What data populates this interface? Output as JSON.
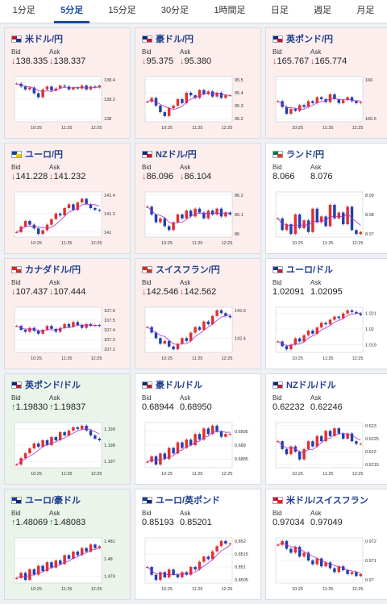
{
  "tabs": [
    {
      "label": "1分足"
    },
    {
      "label": "5分足",
      "active": true
    },
    {
      "label": "15分足"
    },
    {
      "label": "30分足"
    },
    {
      "label": "1時間足"
    },
    {
      "label": "日足"
    },
    {
      "label": "週足"
    },
    {
      "label": "月足"
    }
  ],
  "colors": {
    "down": "#d23c3c",
    "up": "#1f8f2c",
    "bull_candle": "#e03030",
    "bear_candle": "#2040b0",
    "ma": "#b030c8",
    "title": "#1f3d8f"
  },
  "cards": [
    {
      "pair": "米ドル/円",
      "flag": [
        "#c8102e",
        "#0a3c8c"
      ],
      "trend": "down",
      "bid_label": "Bid",
      "ask_label": "Ask",
      "bid": "↓138.335",
      "ask": "↓138.337",
      "chart": {
        "xticks": [
          "10:25",
          "11:25",
          "12:25"
        ],
        "yticks": [
          "138.4",
          "138.2",
          "138"
        ],
        "close": [
          138.36,
          138.33,
          138.3,
          138.32,
          138.26,
          138.22,
          138.3,
          138.33,
          138.29,
          138.31,
          138.34,
          138.33,
          138.3,
          138.32,
          138.31,
          138.34,
          138.3,
          138.33,
          138.32,
          138.34
        ]
      }
    },
    {
      "pair": "豪ドル/円",
      "flag": [
        "#0a2a78",
        "#c8102e"
      ],
      "trend": "down",
      "bid_label": "Bid",
      "ask_label": "Ask",
      "bid": "↓95.375",
      "ask": "↓95.380",
      "chart": {
        "xticks": [
          "10:25",
          "11:25",
          "12:25"
        ],
        "yticks": [
          "95.5",
          "95.4",
          "95.3",
          "95.2"
        ],
        "close": [
          95.33,
          95.36,
          95.3,
          95.25,
          95.22,
          95.28,
          95.3,
          95.35,
          95.32,
          95.4,
          95.38,
          95.36,
          95.42,
          95.39,
          95.41,
          95.37,
          95.4,
          95.36,
          95.38,
          95.38
        ]
      }
    },
    {
      "pair": "英ポンド/円",
      "flag": [
        "#0a2a78",
        "#c8102e"
      ],
      "trend": "down",
      "bid_label": "Bid",
      "ask_label": "Ask",
      "bid": "↓165.767",
      "ask": "↓165.774",
      "chart": {
        "xticks": [
          "10:25",
          "11:25",
          "12:25"
        ],
        "yticks": [
          "166",
          "165.6"
        ],
        "close": [
          165.78,
          165.72,
          165.65,
          165.7,
          165.68,
          165.74,
          165.72,
          165.78,
          165.76,
          165.82,
          165.8,
          165.77,
          165.85,
          165.8,
          165.76,
          165.79,
          165.82,
          165.78,
          165.76,
          165.77
        ]
      }
    },
    {
      "pair": "ユーロ/円",
      "flag": [
        "#1d3b96",
        "#f2c200"
      ],
      "trend": "down",
      "bid_label": "Bid",
      "ask_label": "Ask",
      "bid": "↓141.228",
      "ask": "↓141.232",
      "chart": {
        "xticks": [
          "10:25",
          "11:25",
          "12:25"
        ],
        "yticks": [
          "141.4",
          "141.2",
          "141"
        ],
        "close": [
          141.0,
          141.06,
          141.12,
          141.08,
          141.04,
          140.98,
          141.02,
          141.08,
          141.14,
          141.2,
          141.18,
          141.26,
          141.3,
          141.24,
          141.32,
          141.36,
          141.3,
          141.26,
          141.24,
          141.23
        ]
      }
    },
    {
      "pair": "NZドル/円",
      "flag": [
        "#0a2a78",
        "#c8102e"
      ],
      "trend": "down",
      "bid_label": "Bid",
      "ask_label": "Ask",
      "bid": "↓86.096",
      "ask": "↓86.104",
      "chart": {
        "xticks": [
          "10:25",
          "11:25",
          "12:25"
        ],
        "yticks": [
          "86.2",
          "86.1",
          "86"
        ],
        "close": [
          86.14,
          86.1,
          86.06,
          86.08,
          86.04,
          86.02,
          86.06,
          86.1,
          86.08,
          86.12,
          86.09,
          86.13,
          86.11,
          86.08,
          86.12,
          86.1,
          86.13,
          86.09,
          86.11,
          86.1
        ]
      }
    },
    {
      "pair": "ランド/円",
      "flag": [
        "#007a4d",
        "#de3831"
      ],
      "trend": "flat",
      "bid_label": "Bid",
      "ask_label": "Ask",
      "bid": "8.066",
      "ask": "8.076",
      "chart": {
        "xticks": [
          "10:25",
          "11:25",
          "12:25"
        ],
        "yticks": [
          "8.09",
          "8.08",
          "8.07"
        ],
        "close": [
          8.078,
          8.072,
          8.075,
          8.07,
          8.08,
          8.073,
          8.077,
          8.071,
          8.083,
          8.076,
          8.079,
          8.074,
          8.085,
          8.078,
          8.081,
          8.075,
          8.084,
          8.072,
          8.07,
          8.071
        ]
      }
    },
    {
      "pair": "カナダドル/円",
      "flag": [
        "#d52b1e",
        "#d52b1e"
      ],
      "trend": "down",
      "bid_label": "Bid",
      "ask_label": "Ask",
      "bid": "↓107.437",
      "ask": "↓107.444",
      "chart": {
        "xticks": [
          "10:25",
          "11:25",
          "12:25"
        ],
        "yticks": [
          "107.6",
          "107.5",
          "107.4",
          "107.3",
          "107.2"
        ],
        "close": [
          107.44,
          107.4,
          107.38,
          107.42,
          107.39,
          107.36,
          107.4,
          107.44,
          107.41,
          107.38,
          107.42,
          107.46,
          107.43,
          107.48,
          107.45,
          107.42,
          107.46,
          107.44,
          107.45,
          107.44
        ]
      }
    },
    {
      "pair": "スイスフラン/円",
      "flag": [
        "#d52b1e",
        "#d52b1e"
      ],
      "trend": "down",
      "bid_label": "Bid",
      "ask_label": "Ask",
      "bid": "↓142.546",
      "ask": "↓142.562",
      "chart": {
        "xticks": [
          "10:25",
          "11:25",
          "12:25"
        ],
        "yticks": [
          "142.6",
          "142.4"
        ],
        "close": [
          142.48,
          142.44,
          142.4,
          142.36,
          142.38,
          142.34,
          142.32,
          142.36,
          142.4,
          142.38,
          142.44,
          142.48,
          142.46,
          142.52,
          142.5,
          142.56,
          142.6,
          142.58,
          142.56,
          142.55
        ]
      }
    },
    {
      "pair": "ユーロ/ドル",
      "flag": [
        "#1d3b96",
        "#b22234"
      ],
      "trend": "flat",
      "bid_label": "Bid",
      "ask_label": "Ask",
      "bid": "1.02091",
      "ask": "1.02095",
      "chart": {
        "xticks": [
          "10:25",
          "11:25",
          "12:25"
        ],
        "yticks": [
          "1.021",
          "1.02",
          "1.019"
        ],
        "close": [
          1.0192,
          1.0189,
          1.0187,
          1.019,
          1.0194,
          1.0192,
          1.0196,
          1.0199,
          1.0197,
          1.0201,
          1.0204,
          1.0203,
          1.0206,
          1.0208,
          1.0207,
          1.021,
          1.0212,
          1.0211,
          1.021,
          1.0209
        ]
      }
    },
    {
      "pair": "英ポンド/ドル",
      "flag": [
        "#0a2a78",
        "#b22234"
      ],
      "trend": "up",
      "bid_label": "Bid",
      "ask_label": "Ask",
      "bid": "↑1.19830",
      "ask": "↑1.19837",
      "chart": {
        "xticks": [
          "10:25",
          "11:25",
          "12:25"
        ],
        "yticks": [
          "1.199",
          "1.198",
          "1.197"
        ],
        "close": [
          1.1968,
          1.1972,
          1.1975,
          1.1978,
          1.1981,
          1.1979,
          1.1983,
          1.198,
          1.1985,
          1.1983,
          1.1988,
          1.1986,
          1.1989,
          1.1991,
          1.199,
          1.1992,
          1.1989,
          1.1986,
          1.1984,
          1.1983
        ]
      }
    },
    {
      "pair": "豪ドル/ドル",
      "flag": [
        "#0a2a78",
        "#b22234"
      ],
      "trend": "flat",
      "bid_label": "Bid",
      "ask_label": "Ask",
      "bid": "0.68944",
      "ask": "0.68950",
      "chart": {
        "xticks": [
          "10:25",
          "11:25",
          "12:25"
        ],
        "yticks": [
          "0.6895",
          "0.689",
          "0.6885"
        ],
        "close": [
          0.6884,
          0.6886,
          0.6883,
          0.6887,
          0.6885,
          0.6889,
          0.6887,
          0.6891,
          0.6889,
          0.6892,
          0.689,
          0.6894,
          0.6892,
          0.6896,
          0.6894,
          0.6897,
          0.6895,
          0.6893,
          0.6894,
          0.6894
        ]
      }
    },
    {
      "pair": "NZドル/ドル",
      "flag": [
        "#0a2a78",
        "#b22234"
      ],
      "trend": "flat",
      "bid_label": "Bid",
      "ask_label": "Ask",
      "bid": "0.62232",
      "ask": "0.62246",
      "chart": {
        "xticks": [
          "10:25",
          "11:25",
          "12:25"
        ],
        "yticks": [
          "0.623",
          "0.6225",
          "0.622",
          "0.6215"
        ],
        "close": [
          0.6224,
          0.6221,
          0.6219,
          0.6222,
          0.622,
          0.6217,
          0.6221,
          0.6224,
          0.6222,
          0.6226,
          0.6224,
          0.6228,
          0.6226,
          0.6229,
          0.6227,
          0.6225,
          0.6227,
          0.6224,
          0.6223,
          0.6223
        ]
      }
    },
    {
      "pair": "ユーロ/豪ドル",
      "flag": [
        "#1d3b96",
        "#0a2a78"
      ],
      "trend": "up",
      "bid_label": "Bid",
      "ask_label": "Ask",
      "bid": "↑1.48069",
      "ask": "↑1.48083",
      "chart": {
        "xticks": [
          "10:25",
          "11:25",
          "12:25"
        ],
        "yticks": [
          "1.481",
          "1.48",
          "1.479"
        ],
        "close": [
          1.4789,
          1.4792,
          1.4788,
          1.4794,
          1.4791,
          1.4796,
          1.4793,
          1.4798,
          1.4795,
          1.4799,
          1.4797,
          1.4802,
          1.48,
          1.4804,
          1.4802,
          1.4806,
          1.4804,
          1.4808,
          1.4806,
          1.4807
        ]
      }
    },
    {
      "pair": "ユーロ/英ポンド",
      "flag": [
        "#1d3b96",
        "#0a2a78"
      ],
      "trend": "flat",
      "bid_label": "Bid",
      "ask_label": "Ask",
      "bid": "0.85193",
      "ask": "0.85201",
      "chart": {
        "xticks": [
          "10:25",
          "11:25",
          "12:25"
        ],
        "yticks": [
          "0.852",
          "0.8515",
          "0.851",
          "0.8505"
        ],
        "close": [
          0.851,
          0.8507,
          0.8505,
          0.8508,
          0.8506,
          0.8509,
          0.8507,
          0.8506,
          0.8508,
          0.8507,
          0.851,
          0.8509,
          0.8512,
          0.8514,
          0.8513,
          0.8516,
          0.8518,
          0.852,
          0.8519,
          0.8519
        ]
      }
    },
    {
      "pair": "米ドル/スイスフラン",
      "flag": [
        "#b22234",
        "#d52b1e"
      ],
      "trend": "flat",
      "bid_label": "Bid",
      "ask_label": "Ask",
      "bid": "0.97034",
      "ask": "0.97049",
      "chart": {
        "xticks": [
          "10:25",
          "11:25",
          "12:25"
        ],
        "yticks": [
          "0.972",
          "0.971",
          "0.97"
        ],
        "close": [
          0.9718,
          0.972,
          0.9716,
          0.9714,
          0.9717,
          0.9712,
          0.9714,
          0.971,
          0.9708,
          0.9711,
          0.9707,
          0.9709,
          0.9706,
          0.9704,
          0.9707,
          0.9705,
          0.9703,
          0.9704,
          0.9702,
          0.9703
        ]
      }
    }
  ]
}
